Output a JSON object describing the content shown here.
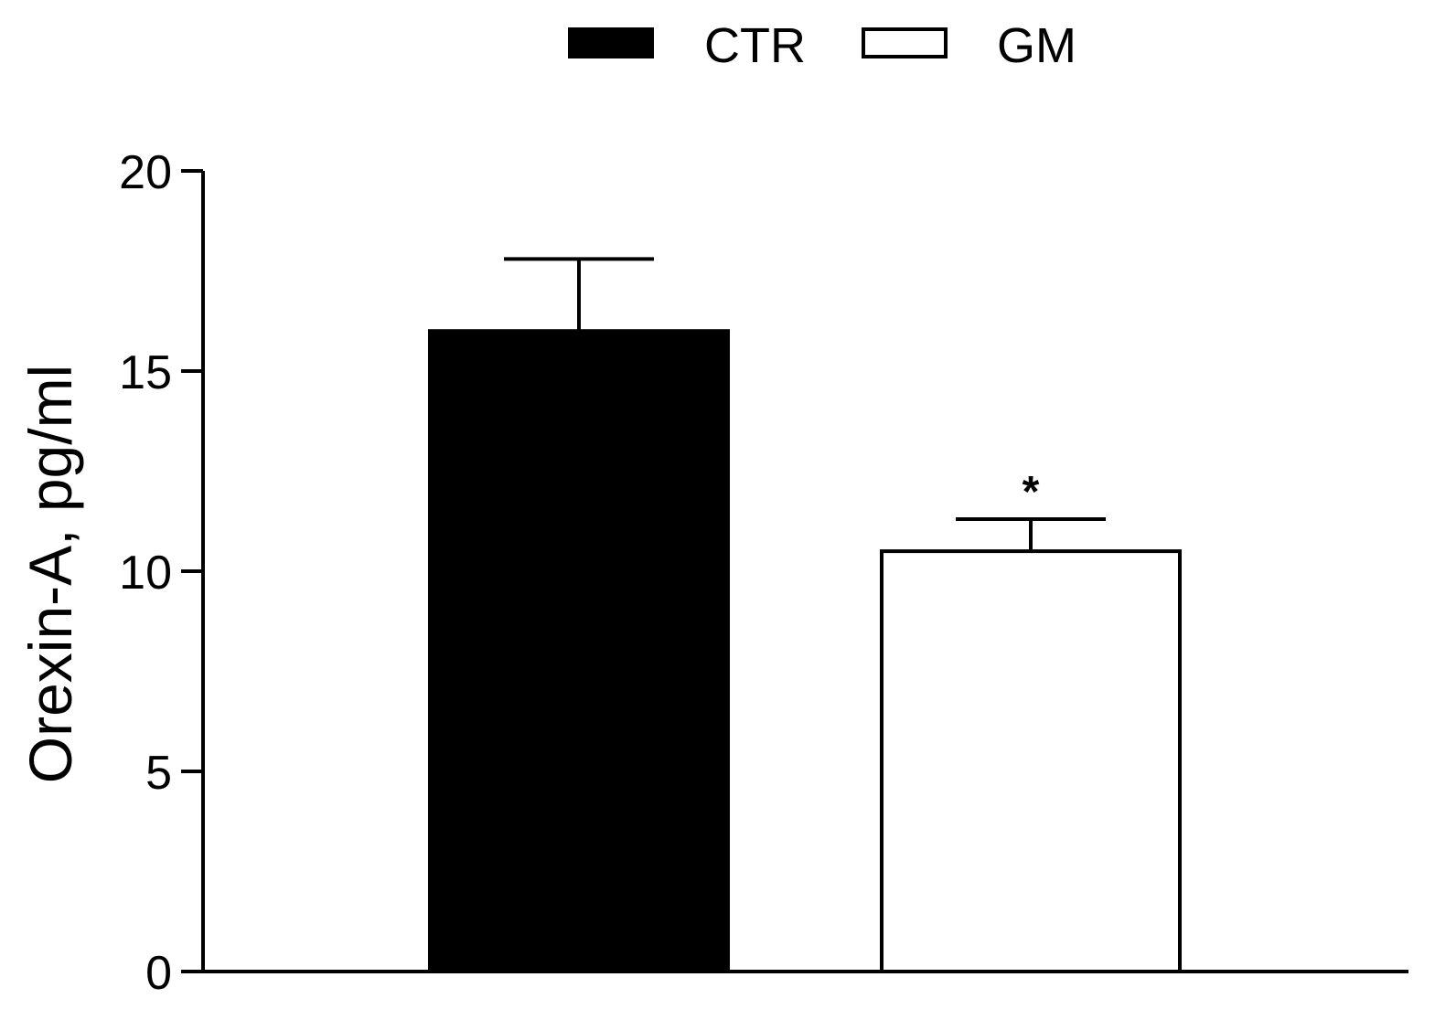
{
  "chart_data": {
    "type": "bar",
    "title": "",
    "xlabel": "",
    "ylabel": "Orexin-A, pg/ml",
    "ylim": [
      0,
      20
    ],
    "yticks": [
      0,
      5,
      10,
      15,
      20
    ],
    "grid": false,
    "legend_position": "top",
    "series": [
      {
        "name": "CTR",
        "value": 16.0,
        "error": 1.8,
        "color": "#000000",
        "annotation": ""
      },
      {
        "name": "GM",
        "value": 10.5,
        "error": 0.8,
        "color": "#ffffff",
        "annotation": "*"
      }
    ]
  }
}
